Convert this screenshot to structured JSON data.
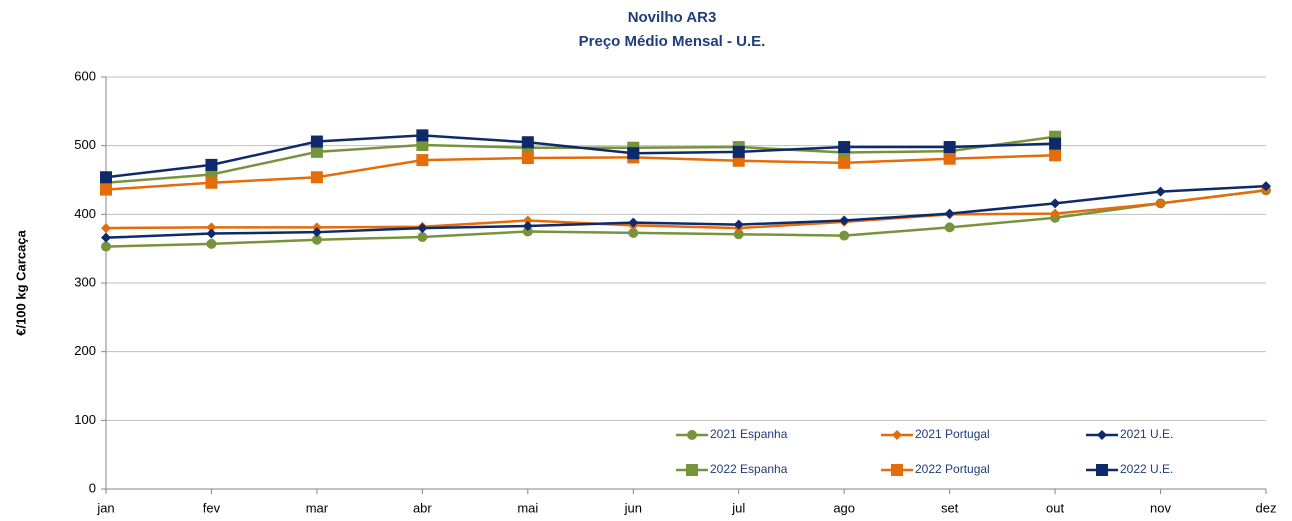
{
  "chart_data": {
    "type": "line",
    "title": "Novilho AR3",
    "subtitle": "Preço Médio Mensal - U.E.",
    "y_label": "€/100 kg  Carcaça",
    "categories": [
      "jan",
      "fev",
      "mar",
      "abr",
      "mai",
      "jun",
      "jul",
      "ago",
      "set",
      "out",
      "nov",
      "dez"
    ],
    "ylim": [
      0,
      600
    ],
    "yticks": [
      0,
      100,
      200,
      300,
      400,
      500,
      600
    ],
    "grid": true,
    "series": [
      {
        "name": "2021 Espanha",
        "color": "#77933c",
        "marker": "circle",
        "values": [
          353,
          357,
          363,
          367,
          375,
          373,
          371,
          369,
          381,
          395,
          416,
          435
        ]
      },
      {
        "name": "2021 Portugal",
        "color": "#e46c0a",
        "marker": "diamond",
        "values": [
          380,
          381,
          381,
          382,
          391,
          384,
          380,
          389,
          400,
          401,
          416,
          435
        ]
      },
      {
        "name": "2021 U.E.",
        "color": "#0e2a6b",
        "marker": "diamond",
        "values": [
          366,
          372,
          374,
          380,
          383,
          388,
          385,
          391,
          401,
          416,
          433,
          441
        ]
      },
      {
        "name": "2022 Espanha",
        "color": "#77933c",
        "marker": "square",
        "values": [
          446,
          458,
          491,
          501,
          497,
          497,
          498,
          490,
          492,
          513,
          null,
          null
        ]
      },
      {
        "name": "2022 Portugal",
        "color": "#e46c0a",
        "marker": "square",
        "values": [
          436,
          446,
          454,
          479,
          482,
          483,
          478,
          475,
          481,
          486,
          null,
          null
        ]
      },
      {
        "name": "2022 U.E.",
        "color": "#0e2a6b",
        "marker": "square",
        "values": [
          454,
          472,
          506,
          515,
          505,
          489,
          491,
          498,
          498,
          503,
          null,
          null
        ]
      }
    ]
  }
}
